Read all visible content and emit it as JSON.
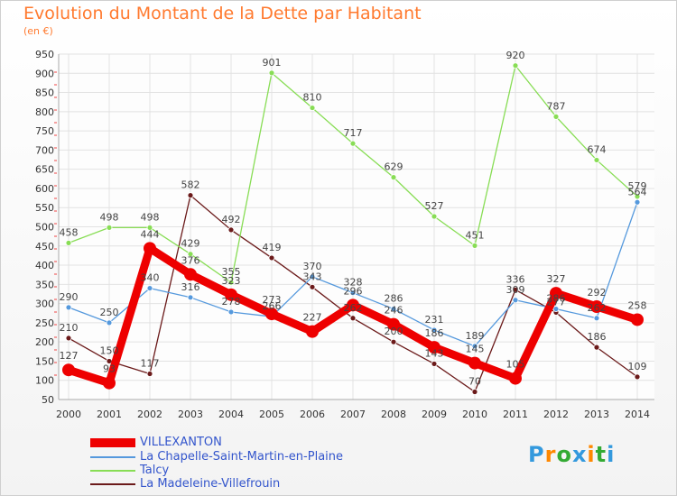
{
  "header": {
    "title": "Evolution du Montant de la Dette par Habitant",
    "subtitle": "(en €)"
  },
  "logo": {
    "text": "Proxiti",
    "colors": [
      "#3399dd",
      "#ff8800",
      "#33aa33",
      "#3399dd",
      "#ff8800",
      "#33aa33",
      "#3399dd"
    ]
  },
  "chart_data": {
    "type": "line",
    "x": [
      "2000",
      "2001",
      "2002",
      "2003",
      "2004",
      "2005",
      "2006",
      "2007",
      "2008",
      "2009",
      "2010",
      "2011",
      "2012",
      "2013",
      "2014"
    ],
    "ylim": [
      50,
      950
    ],
    "yticks": [
      50,
      100,
      150,
      200,
      250,
      300,
      350,
      400,
      450,
      500,
      550,
      600,
      650,
      700,
      750,
      800,
      850,
      900,
      950
    ],
    "grid": true,
    "legend_position": "bottom-left",
    "series": [
      {
        "name": "VILLEXANTON",
        "color": "#ee0000",
        "values": [
          127,
          93,
          444,
          376,
          323,
          273,
          227,
          296,
          246,
          186,
          145,
          105,
          327,
          292,
          258
        ]
      },
      {
        "name": "La Chapelle-Saint-Martin-en-Plaine",
        "color": "#5599dd",
        "values": [
          290,
          250,
          340,
          316,
          278,
          266,
          370,
          328,
          286,
          231,
          189,
          309,
          286,
          262,
          564
        ]
      },
      {
        "name": "Talcy",
        "color": "#88dd55",
        "values": [
          458,
          498,
          498,
          429,
          355,
          901,
          810,
          717,
          629,
          527,
          451,
          920,
          787,
          674,
          579
        ]
      },
      {
        "name": "La Madeleine-Villefrouin",
        "color": "#6b1a1a",
        "values": [
          210,
          150,
          117,
          582,
          492,
          419,
          343,
          262,
          200,
          143,
          70,
          336,
          277,
          186,
          109
        ]
      }
    ]
  }
}
